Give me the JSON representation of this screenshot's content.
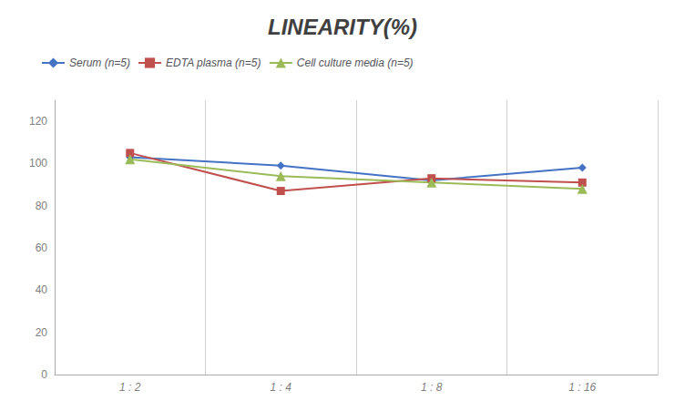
{
  "chart_data": {
    "type": "line",
    "title": "LINEARITY(%)",
    "categories": [
      "1 : 2",
      "1 : 4",
      "1 : 8",
      "1 : 16"
    ],
    "series": [
      {
        "name": "Serum (n=5)",
        "color": "#4472C4",
        "marker": "diamond",
        "values": [
          103,
          99,
          92,
          98
        ]
      },
      {
        "name": "EDTA plasma (n=5)",
        "color": "#C0504D",
        "marker": "square",
        "values": [
          105,
          87,
          93,
          91
        ]
      },
      {
        "name": "Cell culture media (n=5)",
        "color": "#9BBB59",
        "marker": "triangle",
        "values": [
          102,
          94,
          91,
          88
        ]
      }
    ],
    "ylim": [
      0,
      130
    ],
    "yticks": [
      0,
      20,
      40,
      60,
      80,
      100,
      120
    ],
    "grid": true,
    "legend": "top-left"
  }
}
